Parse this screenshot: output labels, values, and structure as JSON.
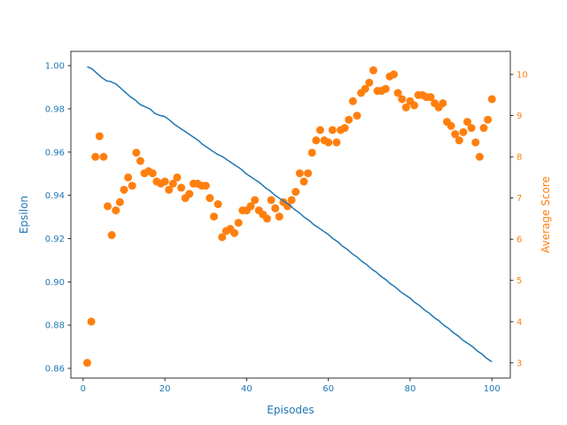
{
  "chart_data": {
    "type": "line+scatter",
    "title": "",
    "xlabel": "Episodes",
    "ylabel_left": "Epsilon",
    "ylabel_right": "Average Score",
    "xlim": [
      -3,
      104.5
    ],
    "ylim_left": [
      0.8555,
      1.0066
    ],
    "ylim_right": [
      2.63,
      10.56
    ],
    "x_ticks": [
      0,
      20,
      40,
      60,
      80,
      100
    ],
    "y_ticks_left": [
      0.86,
      0.88,
      0.9,
      0.92,
      0.94,
      0.96,
      0.98,
      1.0
    ],
    "y_ticks_right": [
      3,
      4,
      5,
      6,
      7,
      8,
      9,
      10
    ],
    "grid": false,
    "colors": {
      "epsilon": "#1f77b4",
      "score": "#ff7f0e"
    },
    "series": [
      {
        "axis": "left",
        "type": "line",
        "x_start": 1,
        "values": [
          0.9995,
          0.9985,
          0.9965,
          0.9945,
          0.993,
          0.9925,
          0.9915,
          0.9895,
          0.9875,
          0.9855,
          0.984,
          0.982,
          0.981,
          0.98,
          0.978,
          0.977,
          0.9765,
          0.975,
          0.973,
          0.9715,
          0.97,
          0.9685,
          0.967,
          0.9655,
          0.9635,
          0.962,
          0.9605,
          0.959,
          0.958,
          0.9565,
          0.955,
          0.9535,
          0.952,
          0.95,
          0.9485,
          0.947,
          0.9455,
          0.9435,
          0.942,
          0.94,
          0.9385,
          0.937,
          0.9355,
          0.9335,
          0.932,
          0.93,
          0.9285,
          0.9265,
          0.925,
          0.9235,
          0.922,
          0.92,
          0.9185,
          0.9165,
          0.915,
          0.913,
          0.9115,
          0.9095,
          0.908,
          0.906,
          0.9045,
          0.9025,
          0.901,
          0.899,
          0.8975,
          0.8955,
          0.894,
          0.8925,
          0.8905,
          0.889,
          0.887,
          0.8855,
          0.8835,
          0.882,
          0.88,
          0.8785,
          0.8765,
          0.875,
          0.873,
          0.8715,
          0.87,
          0.868,
          0.8665,
          0.8645,
          0.863
        ]
      },
      {
        "axis": "right",
        "type": "scatter",
        "x_start": 1,
        "values": [
          3.0,
          4.0,
          8.0,
          8.5,
          8.0,
          6.8,
          6.1,
          6.7,
          6.9,
          7.2,
          7.5,
          7.3,
          8.1,
          7.9,
          7.6,
          7.65,
          7.6,
          7.4,
          7.35,
          7.4,
          7.2,
          7.35,
          7.5,
          7.25,
          7.0,
          7.1,
          7.35,
          7.35,
          7.3,
          7.3,
          7.0,
          6.55,
          6.85,
          6.05,
          6.2,
          6.25,
          6.15,
          6.4,
          6.7,
          6.7,
          6.8,
          6.95,
          6.7,
          6.6,
          6.5,
          6.95,
          6.75,
          6.55,
          6.9,
          6.8,
          6.95,
          7.15,
          7.6,
          7.4,
          7.6,
          8.1,
          8.4,
          8.65,
          8.4,
          8.35,
          8.65,
          8.35,
          8.65,
          8.7,
          8.9,
          9.35,
          9.0,
          9.55,
          9.65,
          9.8,
          10.1,
          9.6,
          9.6,
          9.65,
          9.95,
          10.0,
          9.55,
          9.4,
          9.2,
          9.35,
          9.25,
          9.5,
          9.5,
          9.45,
          9.45,
          9.3,
          9.2,
          9.3,
          8.85,
          8.75,
          8.55,
          8.4,
          8.6,
          8.85,
          8.7,
          8.35,
          8.0,
          8.7,
          8.9,
          9.4
        ]
      }
    ]
  }
}
